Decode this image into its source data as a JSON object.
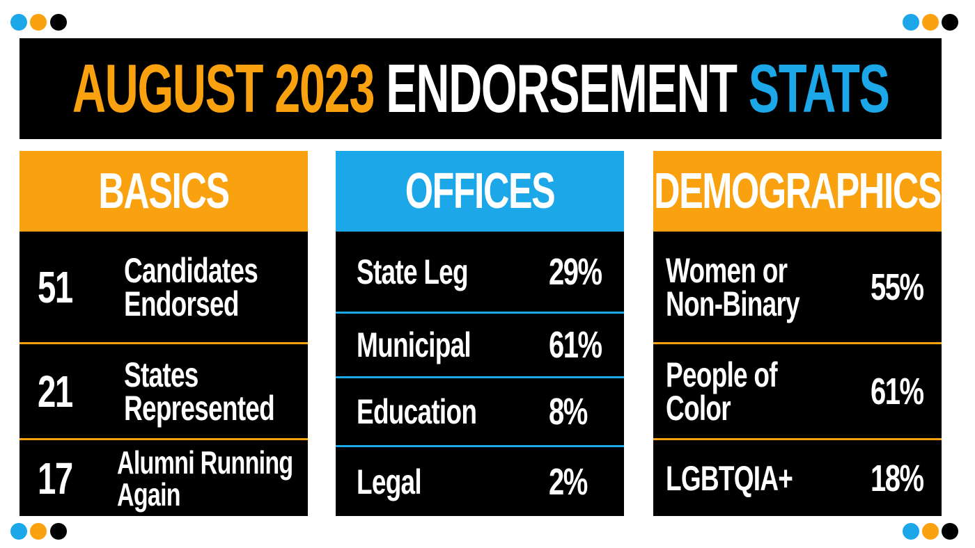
{
  "title": {
    "part1": "AUGUST 2023",
    "part2": "ENDORSEMENT",
    "part3": "STATS"
  },
  "panels": [
    {
      "heading": "BASICS",
      "rows": [
        {
          "number": "51",
          "label": [
            "Candidates",
            "Endorsed"
          ]
        },
        {
          "number": "21",
          "label": [
            "States",
            "Represented"
          ]
        },
        {
          "number": "17",
          "label": [
            "Alumni Running",
            "Again"
          ]
        }
      ]
    },
    {
      "heading": "OFFICES",
      "rows": [
        {
          "label": [
            "State Leg"
          ],
          "value": "29%"
        },
        {
          "label": [
            "Municipal"
          ],
          "value": "61%"
        },
        {
          "label": [
            "Education"
          ],
          "value": "8%"
        },
        {
          "label": [
            "Legal"
          ],
          "value": "2%"
        }
      ]
    },
    {
      "heading": "DEMOGRAPHICS",
      "rows": [
        {
          "label": [
            "Women or",
            "Non-Binary"
          ],
          "value": "55%"
        },
        {
          "label": [
            "People of",
            "Color"
          ],
          "value": "61%"
        },
        {
          "label": [
            "LGBTQIA+"
          ],
          "value": "18%"
        }
      ]
    }
  ]
}
